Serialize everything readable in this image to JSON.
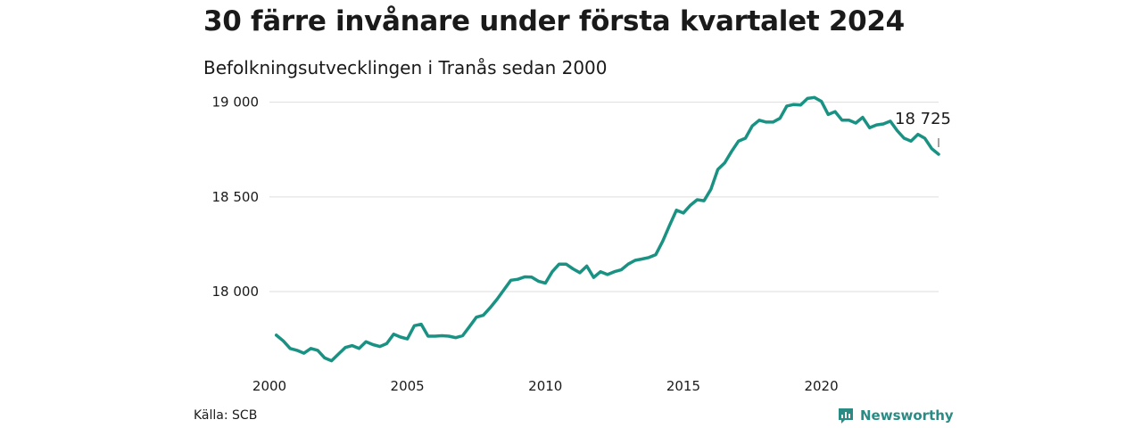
{
  "title": "30 färre invånare under första kvartalet 2024",
  "subtitle": "Befolkningsutvecklingen i Tranås sedan 2000",
  "source": "Källa: SCB",
  "brand": {
    "name": "Newsworthy",
    "icon": "newsworthy-logo-icon",
    "color": "#2a8a84"
  },
  "colors": {
    "line": "#1a9283",
    "grid": "#dddddd"
  },
  "chart_data": {
    "type": "line",
    "title": "30 färre invånare under första kvartalet 2024",
    "subtitle": "Befolkningsutvecklingen i Tranås sedan 2000",
    "xlabel": "",
    "ylabel": "",
    "xlim": [
      2000,
      2024.25
    ],
    "ylim": [
      17600,
      19050
    ],
    "x_ticks": [
      2000,
      2005,
      2010,
      2015,
      2020
    ],
    "y_ticks": [
      {
        "value": 18000,
        "label": "18 000"
      },
      {
        "value": 18500,
        "label": "18 500"
      },
      {
        "value": 19000,
        "label": "19 000"
      }
    ],
    "grid": "horizontal",
    "end_label": "18 725",
    "series": [
      {
        "x": [
          2000.25,
          2000.5,
          2000.75,
          2001.0,
          2001.25,
          2001.5,
          2001.75,
          2002.0,
          2002.25,
          2002.5,
          2002.75,
          2003.0,
          2003.25,
          2003.5,
          2003.75,
          2004.0,
          2004.25,
          2004.5,
          2004.75,
          2005.0,
          2005.25,
          2005.5,
          2005.75,
          2006.0,
          2006.25,
          2006.5,
          2006.75,
          2007.0,
          2007.25,
          2007.5,
          2007.75,
          2008.0,
          2008.25,
          2008.5,
          2008.75,
          2009.0,
          2009.25,
          2009.5,
          2009.75,
          2010.0,
          2010.25,
          2010.5,
          2010.75,
          2011.0,
          2011.25,
          2011.5,
          2011.75,
          2012.0,
          2012.25,
          2012.5,
          2012.75,
          2013.0,
          2013.25,
          2013.5,
          2013.75,
          2014.0,
          2014.25,
          2014.5,
          2014.75,
          2015.0,
          2015.25,
          2015.5,
          2015.75,
          2016.0,
          2016.25,
          2016.5,
          2016.75,
          2017.0,
          2017.25,
          2017.5,
          2017.75,
          2018.0,
          2018.25,
          2018.5,
          2018.75,
          2019.0,
          2019.25,
          2019.5,
          2019.75,
          2020.0,
          2020.25,
          2020.5,
          2020.75,
          2021.0,
          2021.25,
          2021.5,
          2021.75,
          2022.0,
          2022.25,
          2022.5,
          2022.75,
          2023.0,
          2023.25,
          2023.5,
          2023.75,
          2024.0,
          2024.25
        ],
        "values": [
          17770,
          17740,
          17700,
          17690,
          17675,
          17700,
          17690,
          17650,
          17635,
          17670,
          17705,
          17715,
          17700,
          17735,
          17720,
          17710,
          17725,
          17775,
          17760,
          17750,
          17820,
          17828,
          17765,
          17765,
          17767,
          17765,
          17757,
          17767,
          17815,
          17865,
          17875,
          17915,
          17960,
          18010,
          18060,
          18065,
          18078,
          18077,
          18055,
          18045,
          18105,
          18145,
          18145,
          18120,
          18100,
          18135,
          18075,
          18105,
          18090,
          18105,
          18115,
          18145,
          18165,
          18172,
          18180,
          18195,
          18265,
          18350,
          18430,
          18415,
          18455,
          18485,
          18480,
          18540,
          18645,
          18680,
          18740,
          18795,
          18810,
          18875,
          18905,
          18895,
          18895,
          18915,
          18980,
          18988,
          18985,
          19020,
          19025,
          19005,
          18935,
          18950,
          18905,
          18905,
          18890,
          18920,
          18865,
          18880,
          18885,
          18900,
          18850,
          18810,
          18795,
          18830,
          18810,
          18755,
          18725
        ]
      }
    ]
  }
}
